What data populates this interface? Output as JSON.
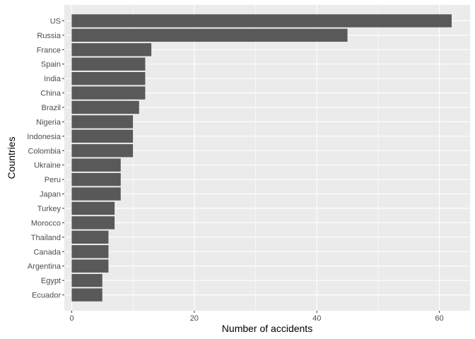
{
  "chart_data": {
    "type": "bar",
    "orientation": "horizontal",
    "categories": [
      "US",
      "Russia",
      "France",
      "Spain",
      "India",
      "China",
      "Brazil",
      "Nigeria",
      "Indonesia",
      "Colombia",
      "Ukraine",
      "Peru",
      "Japan",
      "Turkey",
      "Morocco",
      "Thailand",
      "Canada",
      "Argentina",
      "Egypt",
      "Ecuador"
    ],
    "values": [
      62,
      45,
      13,
      12,
      12,
      12,
      11,
      10,
      10,
      10,
      8,
      8,
      8,
      7,
      7,
      6,
      6,
      6,
      5,
      5
    ],
    "xlabel": "Number of accidents",
    "ylabel": "Countries",
    "xlim": [
      -1.2,
      65
    ],
    "xticks": [
      0,
      20,
      40,
      60
    ],
    "grid": true,
    "colors": {
      "panel": "#ebebeb",
      "grid": "#ffffff",
      "bar": "#595959",
      "tick_text": "#4d4d4d",
      "tick_mark": "#333333"
    }
  }
}
